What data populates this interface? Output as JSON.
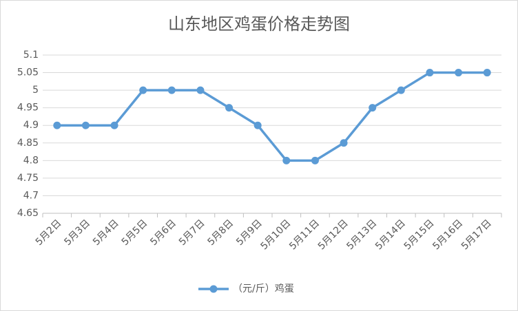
{
  "chart_data": {
    "type": "line",
    "title": "山东地区鸡蛋价格走势图",
    "categories": [
      "5月2日",
      "5月3日",
      "5月4日",
      "5月5日",
      "5月6日",
      "5月7日",
      "5月8日",
      "5月9日",
      "5月10日",
      "5月11日",
      "5月12日",
      "5月13日",
      "5月14日",
      "5月15日",
      "5月16日",
      "5月17日"
    ],
    "series": [
      {
        "name": "（元/斤）鸡蛋",
        "color": "#5b9bd5",
        "values": [
          4.9,
          4.9,
          4.9,
          5,
          5,
          5,
          4.95,
          4.9,
          4.8,
          4.8,
          4.85,
          4.95,
          5,
          5.05,
          5.05,
          5.05
        ]
      }
    ],
    "ylim": [
      4.65,
      5.1
    ],
    "yticks": [
      4.65,
      4.7,
      4.75,
      4.8,
      4.85,
      4.9,
      4.95,
      5,
      5.05,
      5.1
    ],
    "grid": true,
    "legend": "bottom"
  }
}
